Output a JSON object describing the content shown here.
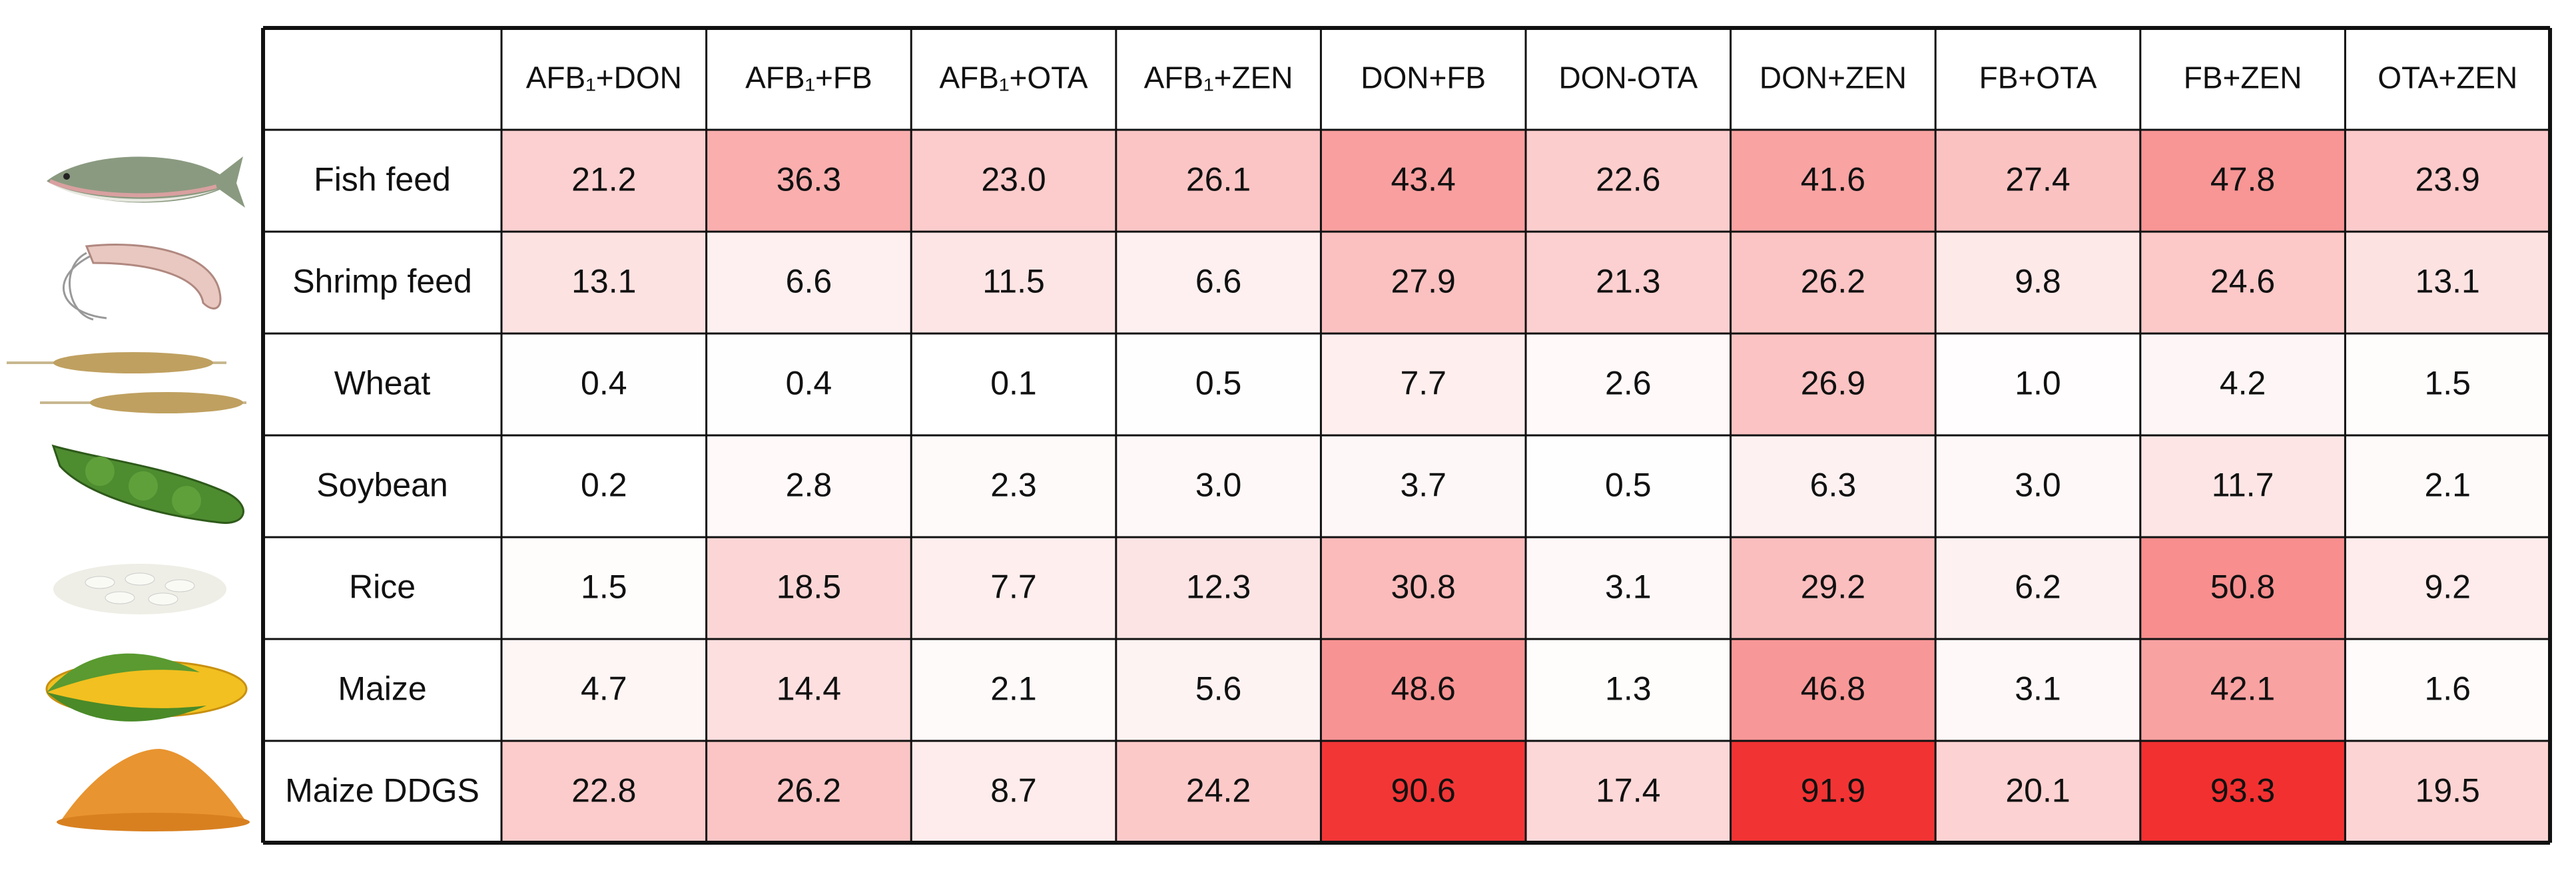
{
  "chart_data": {
    "type": "heatmap",
    "columns": [
      "AFB₁+DON",
      "AFB₁+FB",
      "AFB₁+OTA",
      "AFB₁+ZEN",
      "DON+FB",
      "DON-OTA",
      "DON+ZEN",
      "FB+OTA",
      "FB+ZEN",
      "OTA+ZEN"
    ],
    "categories": [
      "Fish feed",
      "Shrimp feed",
      "Wheat",
      "Soybean",
      "Rice",
      "Maize",
      "Maize DDGS"
    ],
    "values": [
      [
        21.2,
        36.3,
        23.0,
        26.1,
        43.4,
        22.6,
        41.6,
        27.4,
        47.8,
        23.9
      ],
      [
        13.1,
        6.6,
        11.5,
        6.6,
        27.9,
        21.3,
        26.2,
        9.8,
        24.6,
        13.1
      ],
      [
        0.4,
        0.4,
        0.1,
        0.5,
        7.7,
        2.6,
        26.9,
        1.0,
        4.2,
        1.5
      ],
      [
        0.2,
        2.8,
        2.3,
        3.0,
        3.7,
        0.5,
        6.3,
        3.0,
        11.7,
        2.1
      ],
      [
        1.5,
        18.5,
        7.7,
        12.3,
        30.8,
        3.1,
        29.2,
        6.2,
        50.8,
        9.2
      ],
      [
        4.7,
        14.4,
        2.1,
        5.6,
        48.6,
        1.3,
        46.8,
        3.1,
        42.1,
        1.6
      ],
      [
        22.8,
        26.2,
        8.7,
        24.2,
        90.6,
        17.4,
        91.9,
        20.1,
        93.3,
        19.5
      ]
    ],
    "value_labels": [
      [
        "21.2",
        "36.3",
        "23.0",
        "26.1",
        "43.4",
        "22.6",
        "41.6",
        "27.4",
        "47.8",
        "23.9"
      ],
      [
        "13.1",
        "6.6",
        "11.5",
        "6.6",
        "27.9",
        "21.3",
        "26.2",
        "9.8",
        "24.6",
        "13.1"
      ],
      [
        "0.4",
        "0.4",
        "0.1",
        "0.5",
        "7.7",
        "2.6",
        "26.9",
        "1.0",
        "4.2",
        "1.5"
      ],
      [
        "0.2",
        "2.8",
        "2.3",
        "3.0",
        "3.7",
        "0.5",
        "6.3",
        "3.0",
        "11.7",
        "2.1"
      ],
      [
        "1.5",
        "18.5",
        "7.7",
        "12.3",
        "30.8",
        "3.1",
        "29.2",
        "6.2",
        "50.8",
        "9.2"
      ],
      [
        "4.7",
        "14.4",
        "2.1",
        "5.6",
        "48.6",
        "1.3",
        "46.8",
        "3.1",
        "42.1",
        "1.6"
      ],
      [
        "22.8",
        "26.2",
        "8.7",
        "24.2",
        "90.6",
        "17.4",
        "91.9",
        "20.1",
        "93.3",
        "19.5"
      ]
    ],
    "colorscale": [
      "#ffffff",
      "#f23030"
    ]
  }
}
